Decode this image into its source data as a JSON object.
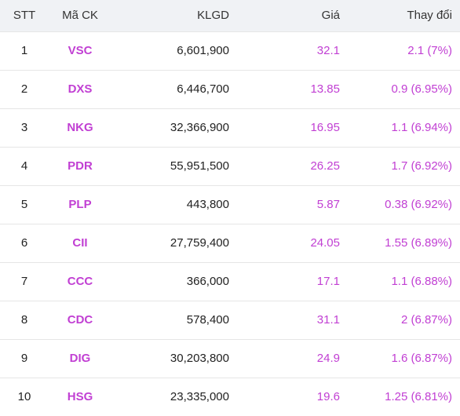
{
  "colors": {
    "accent": "#c13fd3",
    "header_bg": "#f0f2f5"
  },
  "table": {
    "headers": {
      "stt": "STT",
      "code": "Mã CK",
      "volume": "KLGD",
      "price": "Giá",
      "change": "Thay đổi"
    },
    "rows": [
      {
        "stt": "1",
        "code": "VSC",
        "volume": "6,601,900",
        "price": "32.1",
        "change": "2.1 (7%)"
      },
      {
        "stt": "2",
        "code": "DXS",
        "volume": "6,446,700",
        "price": "13.85",
        "change": "0.9 (6.95%)"
      },
      {
        "stt": "3",
        "code": "NKG",
        "volume": "32,366,900",
        "price": "16.95",
        "change": "1.1 (6.94%)"
      },
      {
        "stt": "4",
        "code": "PDR",
        "volume": "55,951,500",
        "price": "26.25",
        "change": "1.7 (6.92%)"
      },
      {
        "stt": "5",
        "code": "PLP",
        "volume": "443,800",
        "price": "5.87",
        "change": "0.38 (6.92%)"
      },
      {
        "stt": "6",
        "code": "CII",
        "volume": "27,759,400",
        "price": "24.05",
        "change": "1.55 (6.89%)"
      },
      {
        "stt": "7",
        "code": "CCC",
        "volume": "366,000",
        "price": "17.1",
        "change": "1.1 (6.88%)"
      },
      {
        "stt": "8",
        "code": "CDC",
        "volume": "578,400",
        "price": "31.1",
        "change": "2 (6.87%)"
      },
      {
        "stt": "9",
        "code": "DIG",
        "volume": "30,203,800",
        "price": "24.9",
        "change": "1.6 (6.87%)"
      },
      {
        "stt": "10",
        "code": "HSG",
        "volume": "23,335,000",
        "price": "19.6",
        "change": "1.25 (6.81%)"
      }
    ]
  }
}
